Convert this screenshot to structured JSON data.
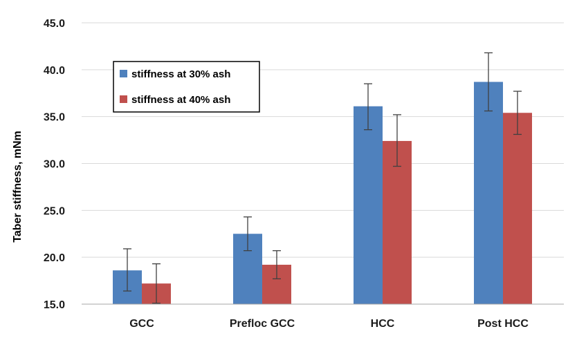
{
  "chart_data": {
    "type": "bar",
    "title": "",
    "xlabel": "",
    "ylabel": "Taber stiffness, mNm",
    "ylim": [
      15.0,
      45.0
    ],
    "y_ticks": [
      "15.0",
      "20.0",
      "25.0",
      "30.0",
      "35.0",
      "40.0",
      "45.0"
    ],
    "y_tick_values": [
      15,
      20,
      25,
      30,
      35,
      40,
      45
    ],
    "grid": true,
    "legend_position": "top-left",
    "categories": [
      "GCC",
      "Prefloc GCC",
      "HCC",
      "Post HCC"
    ],
    "series": [
      {
        "name": "stiffness at 30% ash",
        "color": "#4f81bd",
        "values": [
          18.6,
          22.5,
          36.1,
          38.7
        ],
        "error_low": [
          16.4,
          20.7,
          33.6,
          35.6
        ],
        "error_high": [
          20.9,
          24.3,
          38.5,
          41.8
        ]
      },
      {
        "name": "stiffness at 40% ash",
        "color": "#c0504d",
        "values": [
          17.2,
          19.2,
          32.4,
          35.4
        ],
        "error_low": [
          15.1,
          17.7,
          29.7,
          33.1
        ],
        "error_high": [
          19.3,
          20.7,
          35.2,
          37.7
        ]
      }
    ]
  }
}
